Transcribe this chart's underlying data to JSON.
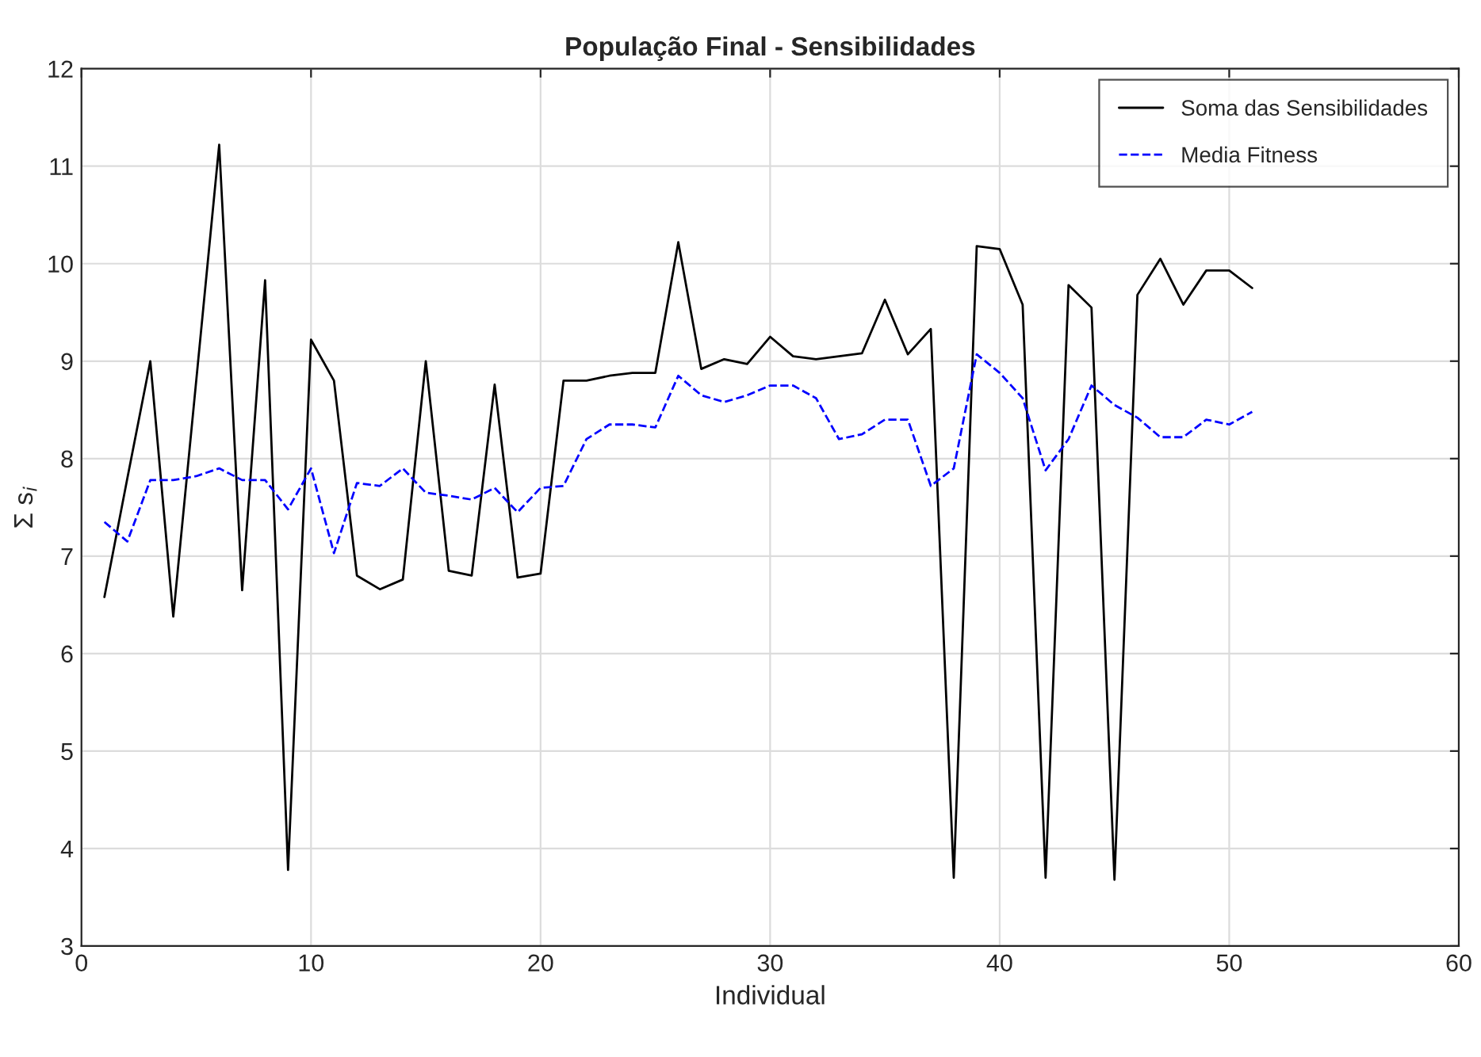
{
  "chart_data": {
    "type": "line",
    "title": "População Final - Sensibilidades",
    "xlabel": "Individual",
    "ylabel": "Σ s$_{i}$",
    "x": [
      1,
      2,
      3,
      4,
      5,
      6,
      7,
      8,
      9,
      10,
      11,
      12,
      13,
      14,
      15,
      16,
      17,
      18,
      19,
      20,
      21,
      22,
      23,
      24,
      25,
      26,
      27,
      28,
      29,
      30,
      31,
      32,
      33,
      34,
      35,
      36,
      37,
      38,
      39,
      40,
      41,
      42,
      43,
      44,
      45,
      46,
      47,
      48,
      49,
      50,
      51
    ],
    "series": [
      {
        "name": "Soma das Sensibilidades",
        "color": "#000000",
        "line_style": "solid",
        "values": [
          6.58,
          7.8,
          9.0,
          6.38,
          8.8,
          11.22,
          6.65,
          9.83,
          3.78,
          9.22,
          8.8,
          6.8,
          6.66,
          6.76,
          9.0,
          6.85,
          6.8,
          8.76,
          6.78,
          6.82,
          8.8,
          8.8,
          8.85,
          8.88,
          8.88,
          10.22,
          8.92,
          9.02,
          8.97,
          9.25,
          9.05,
          9.02,
          9.05,
          9.08,
          9.63,
          9.07,
          9.33,
          3.7,
          10.18,
          10.15,
          9.58,
          3.7,
          9.78,
          9.55,
          3.68,
          9.68,
          10.05,
          9.58,
          9.93,
          9.93,
          9.75
        ]
      },
      {
        "name": "Media Fitness",
        "color": "#0000ff",
        "line_style": "dashed",
        "values": [
          7.35,
          7.15,
          7.78,
          7.78,
          7.82,
          7.9,
          7.78,
          7.78,
          7.48,
          7.9,
          7.03,
          7.75,
          7.72,
          7.9,
          7.65,
          7.62,
          7.58,
          7.7,
          7.45,
          7.7,
          7.72,
          8.2,
          8.35,
          8.35,
          8.32,
          8.85,
          8.65,
          8.58,
          8.65,
          8.75,
          8.75,
          8.62,
          8.2,
          8.25,
          8.4,
          8.4,
          7.72,
          7.9,
          9.07,
          8.88,
          8.62,
          7.88,
          8.2,
          8.75,
          8.55,
          8.42,
          8.22,
          8.22,
          8.4,
          8.35,
          8.48
        ]
      }
    ],
    "xlim": [
      0,
      60
    ],
    "xticks": [
      0,
      10,
      20,
      30,
      40,
      50,
      60
    ],
    "ylim": [
      3,
      12
    ],
    "yticks": [
      3,
      4,
      5,
      6,
      7,
      8,
      9,
      10,
      11,
      12
    ],
    "grid": true,
    "legend": "top right",
    "marker": "none"
  }
}
